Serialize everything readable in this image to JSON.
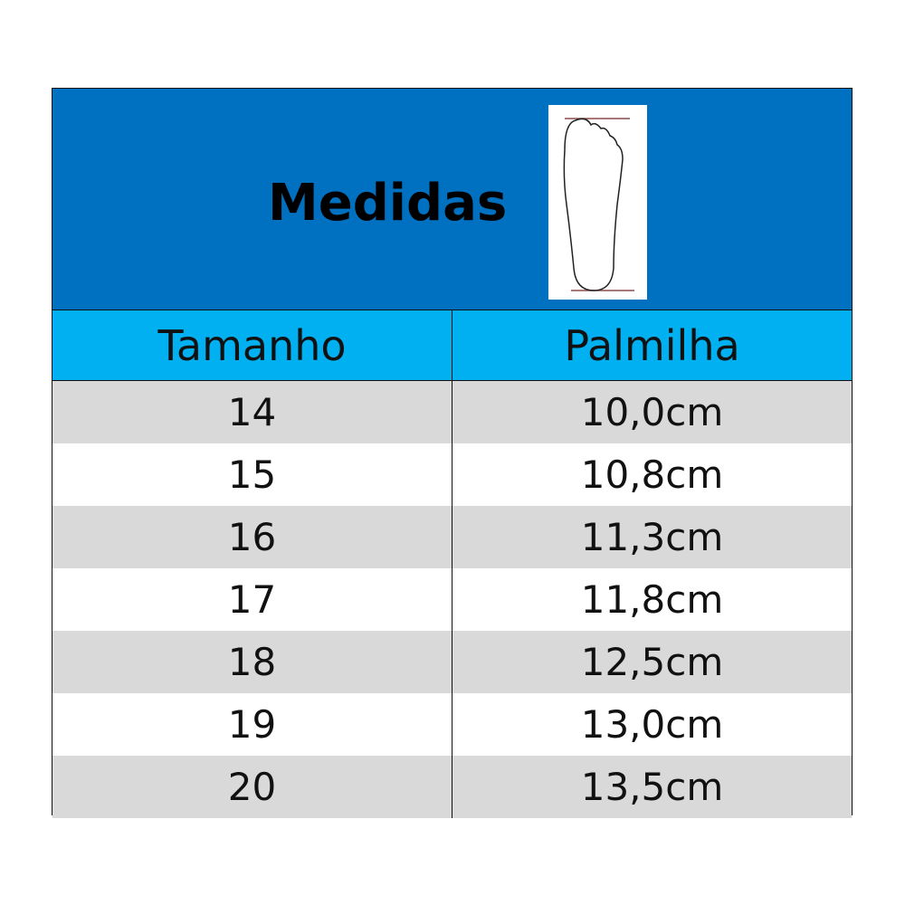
{
  "title": "Medidas",
  "image": {
    "icon": "foot-outline-icon",
    "line_color": "#8b4a4a"
  },
  "headers": {
    "size": "Tamanho",
    "insole": "Palmilha"
  },
  "rows": [
    {
      "size": "14",
      "insole": "10,0cm"
    },
    {
      "size": "15",
      "insole": "10,8cm"
    },
    {
      "size": "16",
      "insole": "11,3cm"
    },
    {
      "size": "17",
      "insole": "11,8cm"
    },
    {
      "size": "18",
      "insole": "12,5cm"
    },
    {
      "size": "19",
      "insole": "13,0cm"
    },
    {
      "size": "20",
      "insole": "13,5cm"
    }
  ],
  "colors": {
    "header": "#0070c0",
    "subheader": "#00b0f0",
    "stripe": "#d9d9d9"
  }
}
